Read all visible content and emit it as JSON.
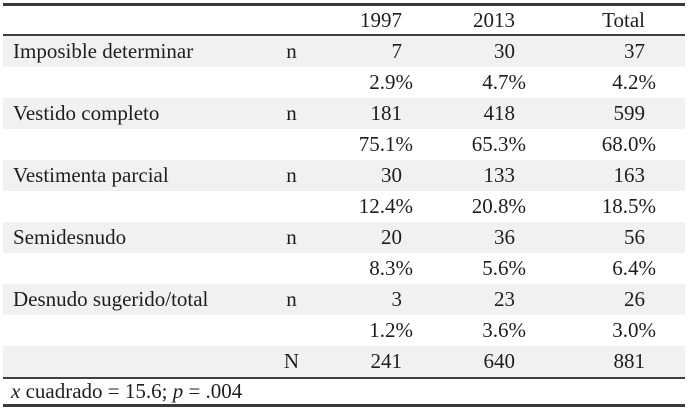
{
  "columns": {
    "year1": "1997",
    "year2": "2013",
    "total": "Total"
  },
  "labels": {
    "n": "n",
    "N": "N"
  },
  "rows": [
    {
      "label": "Imposible determinar",
      "n": [
        "7",
        "30",
        "37"
      ],
      "pct": [
        "2.9%",
        "4.7%",
        "4.2%"
      ]
    },
    {
      "label": "Vestido completo",
      "n": [
        "181",
        "418",
        "599"
      ],
      "pct": [
        "75.1%",
        "65.3%",
        "68.0%"
      ]
    },
    {
      "label": "Vestimenta parcial",
      "n": [
        "30",
        "133",
        "163"
      ],
      "pct": [
        "12.4%",
        "20.8%",
        "18.5%"
      ]
    },
    {
      "label": "Semidesnudo",
      "n": [
        "20",
        "36",
        "56"
      ],
      "pct": [
        "8.3%",
        "5.6%",
        "6.4%"
      ]
    },
    {
      "label": "Desnudo sugerido/total",
      "n": [
        "3",
        "23",
        "26"
      ],
      "pct": [
        "1.2%",
        "3.6%",
        "3.0%"
      ]
    }
  ],
  "total_row": {
    "values": [
      "241",
      "640",
      "881"
    ]
  },
  "footer": {
    "x_var": "x",
    "x_text": " cuadrado = 15.6; ",
    "p_var": "p",
    "p_text": " = .004"
  },
  "colors": {
    "rule": "#3a3a3a",
    "row_shading": "#f1f1f1",
    "text": "#1e1e1e"
  }
}
